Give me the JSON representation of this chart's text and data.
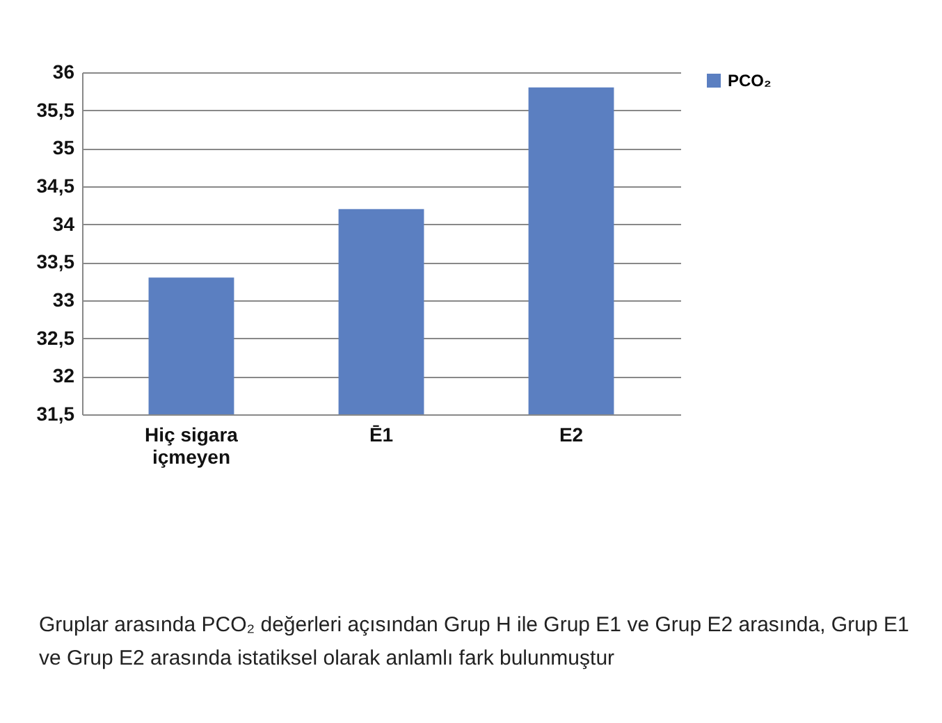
{
  "chart_data": {
    "type": "bar",
    "categories": [
      "Hiç sigara içmeyen",
      "Ē1",
      "E2"
    ],
    "series": [
      {
        "name": "PCO₂",
        "color": "#5b7fc1",
        "values": [
          33.3,
          34.2,
          35.8
        ]
      }
    ],
    "ylim": [
      31.5,
      36
    ],
    "yticks": [
      {
        "value": 31.5,
        "label": "31,5"
      },
      32,
      {
        "value": 32.5,
        "label": "32,5"
      },
      33,
      {
        "value": 33.5,
        "label": "33,5"
      },
      34,
      {
        "value": 34.5,
        "label": "34,5"
      },
      35,
      {
        "value": 35.5,
        "label": "35,5"
      },
      36
    ],
    "grid": "y",
    "legend": "right",
    "annotations": [
      "Gruplar arasında PCO₂ değerleri açısından Grup H ile Grup E1 ve Grup E2 arasında, Grup E1 ve Grup E2 arasında istatiksel olarak anlamlı fark bulunmuştur"
    ]
  }
}
